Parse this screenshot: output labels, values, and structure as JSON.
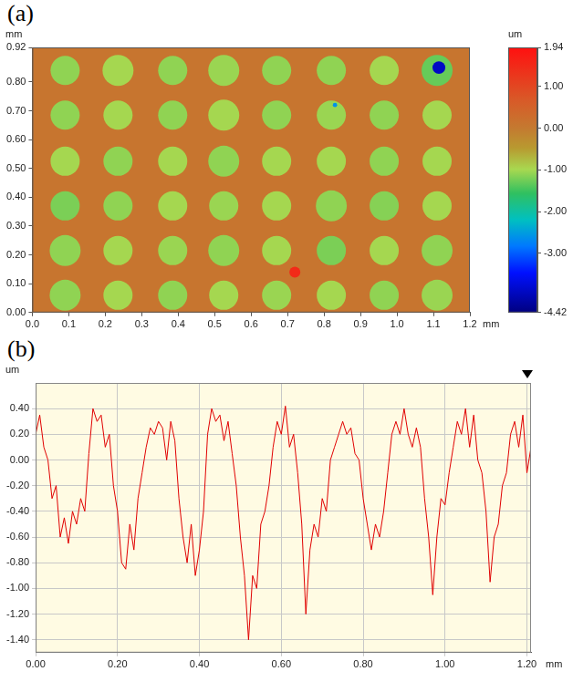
{
  "chart_data": [
    {
      "panel": "(a)",
      "type": "heatmap",
      "x_label": "mm",
      "y_label": "mm",
      "xlim": [
        0,
        1.2
      ],
      "xticks": [
        {
          "value": 0,
          "label": "0.0"
        },
        0.1,
        0.2,
        0.3,
        0.4,
        0.5,
        0.6,
        0.7,
        0.8,
        0.9,
        {
          "value": 1,
          "label": "1.0"
        },
        1.1,
        1.2
      ],
      "ylim": [
        0,
        0.92
      ],
      "yticks": [
        {
          "value": 0,
          "label": "0.00"
        },
        {
          "value": 0.1,
          "label": "0.10"
        },
        {
          "value": 0.2,
          "label": "0.20"
        },
        {
          "value": 0.3,
          "label": "0.30"
        },
        {
          "value": 0.4,
          "label": "0.40"
        },
        {
          "value": 0.5,
          "label": "0.50"
        },
        {
          "value": 0.6,
          "label": "0.60"
        },
        {
          "value": 0.7,
          "label": "0.70"
        },
        {
          "value": 0.8,
          "label": "0.80"
        },
        0.92
      ],
      "grid": false,
      "background_value": 0.1,
      "spots": {
        "x": [
          0.09,
          0.235,
          0.385,
          0.525,
          0.67,
          0.82,
          0.965,
          1.11,
          0.09,
          0.235,
          0.385,
          0.525,
          0.67,
          0.82,
          0.965,
          1.11,
          0.09,
          0.235,
          0.385,
          0.525,
          0.67,
          0.82,
          0.965,
          1.11,
          0.09,
          0.235,
          0.385,
          0.525,
          0.67,
          0.82,
          0.965,
          1.11,
          0.09,
          0.235,
          0.385,
          0.525,
          0.67,
          0.82,
          0.965,
          1.11,
          0.09,
          0.235,
          0.385,
          0.525,
          0.67,
          0.82,
          0.965,
          1.11,
          1.115,
          0.72,
          0.83
        ],
        "y": [
          0.84,
          0.84,
          0.84,
          0.84,
          0.84,
          0.84,
          0.84,
          0.84,
          0.685,
          0.685,
          0.685,
          0.685,
          0.685,
          0.685,
          0.685,
          0.685,
          0.525,
          0.525,
          0.525,
          0.525,
          0.525,
          0.525,
          0.525,
          0.525,
          0.37,
          0.37,
          0.37,
          0.37,
          0.37,
          0.37,
          0.37,
          0.37,
          0.215,
          0.215,
          0.215,
          0.215,
          0.215,
          0.215,
          0.215,
          0.215,
          0.06,
          0.06,
          0.06,
          0.06,
          0.06,
          0.06,
          0.06,
          0.06,
          0.85,
          0.14,
          0.72
        ],
        "values": [
          -1.1,
          -1.0,
          -1.1,
          -1.05,
          -1.1,
          -1.1,
          -1.0,
          -1.3,
          -1.1,
          -1.0,
          -1.1,
          -1.0,
          -1.1,
          -1.05,
          -1.1,
          -1.0,
          -1.0,
          -1.1,
          -1.0,
          -1.1,
          -1.0,
          -1.0,
          -1.1,
          -1.0,
          -1.2,
          -1.1,
          -1.0,
          -1.05,
          -1.0,
          -1.1,
          -1.15,
          -1.0,
          -1.1,
          -1.0,
          -1.05,
          -1.1,
          -1.0,
          -1.2,
          -1.0,
          -1.1,
          -1.1,
          -1.0,
          -1.1,
          -1.0,
          -1.05,
          -1.0,
          -1.1,
          -1.05,
          -3.9,
          1.5,
          -2.6
        ],
        "diameter": [
          0.08,
          0.085,
          0.08,
          0.085,
          0.08,
          0.08,
          0.08,
          0.085,
          0.08,
          0.08,
          0.08,
          0.085,
          0.08,
          0.08,
          0.08,
          0.08,
          0.08,
          0.08,
          0.08,
          0.085,
          0.08,
          0.08,
          0.08,
          0.08,
          0.08,
          0.08,
          0.08,
          0.08,
          0.08,
          0.085,
          0.08,
          0.08,
          0.085,
          0.08,
          0.08,
          0.085,
          0.08,
          0.08,
          0.08,
          0.085,
          0.085,
          0.08,
          0.08,
          0.08,
          0.08,
          0.08,
          0.08,
          0.085,
          0.035,
          0.03,
          0.012
        ]
      },
      "colorbar": {
        "label": "um",
        "range": [
          -4.42,
          1.94
        ],
        "ticks": [
          -4.42,
          {
            "value": -3,
            "label": "-3.00"
          },
          {
            "value": -2,
            "label": "-2.00"
          },
          {
            "value": -1,
            "label": "-1.00"
          },
          {
            "value": 0,
            "label": "0.00"
          },
          {
            "value": 1,
            "label": "1.00"
          },
          1.94
        ]
      }
    },
    {
      "panel": "(b)",
      "type": "line",
      "x_label": "mm",
      "y_label": "um",
      "color": "#e00000",
      "grid": true,
      "xlim": [
        0,
        1.21
      ],
      "xticks": [
        {
          "value": 0,
          "label": "0.00"
        },
        {
          "value": 0.2,
          "label": "0.20"
        },
        {
          "value": 0.4,
          "label": "0.40"
        },
        {
          "value": 0.6,
          "label": "0.60"
        },
        {
          "value": 0.8,
          "label": "0.80"
        },
        {
          "value": 1,
          "label": "1.00"
        },
        {
          "value": 1.2,
          "label": "1.20"
        }
      ],
      "ylim": [
        -1.5,
        0.6
      ],
      "yticks": [
        {
          "value": -1.4,
          "label": "-1.40"
        },
        {
          "value": -1.2,
          "label": "-1.20"
        },
        {
          "value": -1,
          "label": "-1.00"
        },
        {
          "value": -0.8,
          "label": "-0.80"
        },
        {
          "value": -0.6,
          "label": "-0.60"
        },
        {
          "value": -0.4,
          "label": "-0.40"
        },
        {
          "value": -0.2,
          "label": "-0.20"
        },
        {
          "value": 0,
          "label": "0.00"
        },
        {
          "value": 0.2,
          "label": "0.20"
        },
        {
          "value": 0.4,
          "label": "0.40"
        }
      ],
      "x": [
        0,
        0.01,
        0.02,
        0.03,
        0.04,
        0.05,
        0.06,
        0.07,
        0.08,
        0.09,
        0.1,
        0.11,
        0.12,
        0.13,
        0.14,
        0.15,
        0.16,
        0.17,
        0.18,
        0.19,
        0.2,
        0.21,
        0.22,
        0.23,
        0.24,
        0.25,
        0.26,
        0.27,
        0.28,
        0.29,
        0.3,
        0.31,
        0.32,
        0.33,
        0.34,
        0.35,
        0.36,
        0.37,
        0.38,
        0.39,
        0.4,
        0.41,
        0.42,
        0.43,
        0.44,
        0.45,
        0.46,
        0.47,
        0.48,
        0.49,
        0.5,
        0.51,
        0.52,
        0.53,
        0.54,
        0.55,
        0.56,
        0.57,
        0.58,
        0.59,
        0.6,
        0.61,
        0.62,
        0.63,
        0.64,
        0.65,
        0.66,
        0.67,
        0.68,
        0.69,
        0.7,
        0.71,
        0.72,
        0.73,
        0.74,
        0.75,
        0.76,
        0.77,
        0.78,
        0.79,
        0.8,
        0.81,
        0.82,
        0.83,
        0.84,
        0.85,
        0.86,
        0.87,
        0.88,
        0.89,
        0.9,
        0.91,
        0.92,
        0.93,
        0.94,
        0.95,
        0.96,
        0.97,
        0.98,
        0.99,
        1,
        1.01,
        1.02,
        1.03,
        1.04,
        1.05,
        1.06,
        1.07,
        1.08,
        1.09,
        1.1,
        1.11,
        1.12,
        1.13,
        1.14,
        1.15,
        1.16,
        1.17,
        1.18,
        1.19,
        1.2,
        1.21
      ],
      "values": [
        0.2,
        0.35,
        0.1,
        0,
        -0.3,
        -0.2,
        -0.6,
        -0.45,
        -0.65,
        -0.4,
        -0.5,
        -0.3,
        -0.4,
        0.05,
        0.4,
        0.3,
        0.35,
        0.1,
        0.2,
        -0.2,
        -0.4,
        -0.8,
        -0.85,
        -0.5,
        -0.7,
        -0.3,
        -0.1,
        0.1,
        0.25,
        0.2,
        0.3,
        0.25,
        0,
        0.3,
        0.15,
        -0.3,
        -0.6,
        -0.8,
        -0.5,
        -0.9,
        -0.7,
        -0.4,
        0.2,
        0.4,
        0.3,
        0.35,
        0.15,
        0.3,
        0.05,
        -0.2,
        -0.6,
        -0.9,
        -1.4,
        -0.9,
        -1.0,
        -0.5,
        -0.4,
        -0.2,
        0.1,
        0.3,
        0.2,
        0.42,
        0.1,
        0.2,
        -0.1,
        -0.5,
        -1.2,
        -0.7,
        -0.5,
        -0.6,
        -0.3,
        -0.4,
        0,
        0.1,
        0.2,
        0.3,
        0.2,
        0.25,
        0.05,
        0,
        -0.3,
        -0.5,
        -0.7,
        -0.5,
        -0.6,
        -0.4,
        -0.1,
        0.2,
        0.3,
        0.2,
        0.4,
        0.2,
        0.1,
        0.25,
        0.1,
        -0.3,
        -0.6,
        -1.05,
        -0.6,
        -0.3,
        -0.35,
        -0.1,
        0.1,
        0.3,
        0.2,
        0.4,
        0.1,
        0.35,
        0,
        -0.1,
        -0.4,
        -0.95,
        -0.6,
        -0.5,
        -0.2,
        -0.1,
        0.2,
        0.3,
        0.1,
        0.35,
        -0.1,
        0.1
      ]
    }
  ]
}
